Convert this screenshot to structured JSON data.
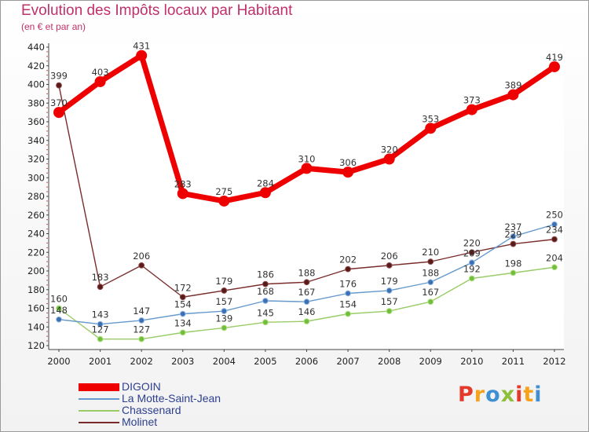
{
  "header": {
    "title": "Evolution des Impôts locaux par Habitant",
    "subtitle": "(en € et par an)"
  },
  "chart_data": {
    "type": "line",
    "title": "Evolution des Impôts locaux par Habitant",
    "subtitle": "(en € et par an)",
    "xlabel": "",
    "ylabel": "",
    "ylim": [
      120,
      440
    ],
    "ytick_step": 20,
    "grid": false,
    "legend_position": "bottom-left",
    "categories": [
      "2000",
      "2001",
      "2002",
      "2003",
      "2004",
      "2005",
      "2006",
      "2007",
      "2008",
      "2009",
      "2010",
      "2011",
      "2012"
    ],
    "series": [
      {
        "name": "DIGOIN",
        "color": "#ee0000",
        "values": [
          370,
          403,
          431,
          283,
          275,
          284,
          310,
          306,
          320,
          353,
          373,
          389,
          419
        ]
      },
      {
        "name": "La Motte-Saint-Jean",
        "color": "#6699cc",
        "values": [
          148,
          143,
          147,
          154,
          157,
          168,
          167,
          176,
          179,
          188,
          209,
          237,
          250
        ]
      },
      {
        "name": "Chassenard",
        "color": "#99cc66",
        "values": [
          160,
          127,
          127,
          134,
          139,
          145,
          146,
          154,
          157,
          167,
          192,
          198,
          204
        ]
      },
      {
        "name": "Molinet",
        "color": "#7a2c2c",
        "values": [
          399,
          183,
          206,
          172,
          179,
          186,
          188,
          202,
          206,
          210,
          220,
          229,
          234
        ]
      }
    ]
  },
  "logo": {
    "text": "Proxiti",
    "colors": [
      "#e53a2b",
      "#f7a21b",
      "#3f8fd2",
      "#8fbf3a"
    ]
  }
}
